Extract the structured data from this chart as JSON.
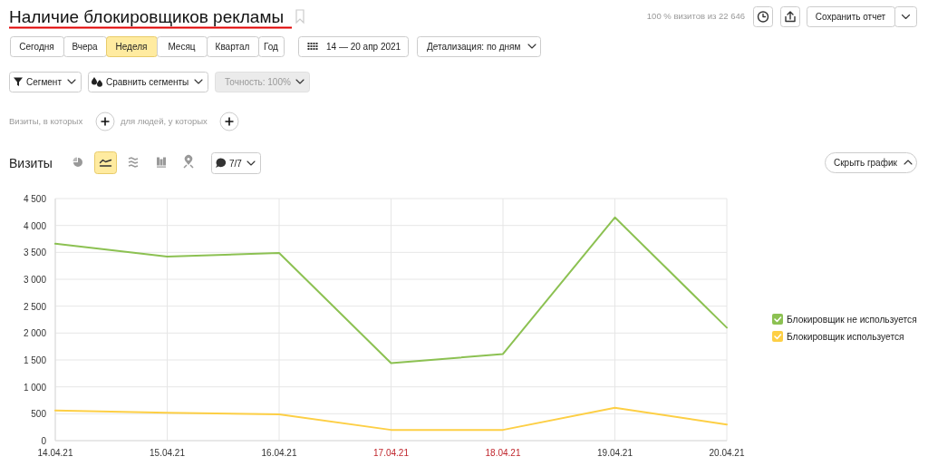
{
  "chart_data": {
    "type": "line",
    "title": "Наличие блокировщиков рекламы",
    "subtitle": "Визиты",
    "annotations": [
      "100 % визитов из 22 646",
      "Сохранить отчет",
      "Сегодня",
      "Вчера",
      "Неделя",
      "Месяц",
      "Квартал",
      "Год",
      "14 — 20 апр 2021",
      "Детализация: по дням",
      "Сегмент",
      "Сравнить сегменты",
      "Точность: 100%",
      "Визиты, в которых",
      "для людей, у которых",
      "7/7",
      "Скрыть график"
    ],
    "x": [
      "2021-04-14",
      "2021-04-15",
      "2021-04-16",
      "2021-04-17",
      "2021-04-18",
      "2021-04-19",
      "2021-04-20"
    ],
    "xlim": [
      "2021-04-14",
      "2021-04-20"
    ],
    "xticks": [
      {
        "value": "2021-04-14",
        "label": "14.04.21"
      },
      {
        "value": "2021-04-15",
        "label": "15.04.21"
      },
      {
        "value": "2021-04-16",
        "label": "16.04.21"
      },
      {
        "value": "2021-04-17",
        "label": "17.04.21"
      },
      {
        "value": "2021-04-18",
        "label": "18.04.21"
      },
      {
        "value": "2021-04-19",
        "label": "19.04.21"
      },
      {
        "value": "2021-04-20",
        "label": "20.04.21"
      }
    ],
    "ylim": [
      0,
      4500
    ],
    "yticks": [
      0,
      500,
      {
        "value": 1000,
        "label": "1 000"
      },
      {
        "value": 1500,
        "label": "1 500"
      },
      {
        "value": 2000,
        "label": "2 000"
      },
      {
        "value": 2500,
        "label": "2 500"
      },
      {
        "value": 3000,
        "label": "3 000"
      },
      {
        "value": 3500,
        "label": "3 500"
      },
      {
        "value": 4000,
        "label": "4 000"
      },
      {
        "value": 4500,
        "label": "4 500"
      }
    ],
    "series": [
      {
        "name": "Блокировщик не используется",
        "color": "#8cc152",
        "values": [
          3660,
          3420,
          3490,
          1440,
          1610,
          4150,
          2100
        ]
      },
      {
        "name": "Блокировщик используется",
        "color": "#fdcf45",
        "values": [
          560,
          520,
          490,
          200,
          200,
          610,
          300
        ]
      }
    ],
    "grid": true,
    "legend": "right"
  }
}
